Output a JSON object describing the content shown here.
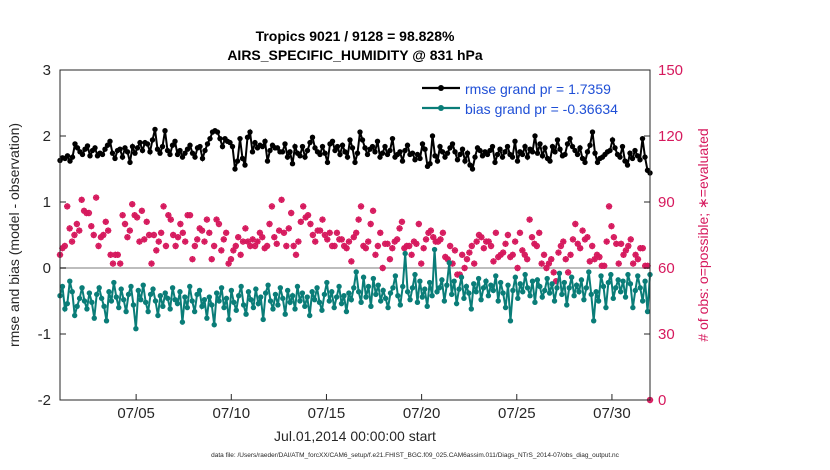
{
  "chart_data": {
    "type": "line",
    "title_line1": "Tropics 9021 / 9128 = 98.828%",
    "title_line2": "AIRS_SPECIFIC_HUMIDITY @ 831 hPa",
    "ylabel_left": "rmse and bias (model - observation)",
    "ylabel_right": "# of obs: o=possible; ∗=evaluated",
    "xlabel": "Jul.01,2014 00:00:00 start",
    "footer": "data file: /Users/raeder/DAI/ATM_forcXX/CAM6_setup/f.e21.FHIST_BGC.f09_025.CAM6assim.011/Diags_NTrS_2014-07/obs_diag_output.nc",
    "x_range": [
      1,
      32
    ],
    "ylim_left": [
      -2,
      3
    ],
    "ylim_right": [
      0,
      150
    ],
    "yticks_left": [
      -2,
      -1,
      0,
      1,
      2,
      3
    ],
    "yticks_right": [
      0,
      30,
      60,
      90,
      120,
      150
    ],
    "xticks": [
      {
        "value": 5,
        "label": "07/05"
      },
      {
        "value": 10,
        "label": "07/10"
      },
      {
        "value": 15,
        "label": "07/15"
      },
      {
        "value": 20,
        "label": "07/20"
      },
      {
        "value": 25,
        "label": "07/25"
      },
      {
        "value": 30,
        "label": "07/30"
      }
    ],
    "legend_position": "top-right",
    "colors": {
      "rmse": "#000000",
      "bias": "#0a7d78",
      "obs": "#d6195d",
      "zero": "#bdbdbd",
      "legend_text": "#1f4fd6"
    },
    "series": [
      {
        "name": "rmse grand pr = 1.7359",
        "key": "rmse",
        "axis": "left",
        "values": [
          1.63,
          1.67,
          1.66,
          1.7,
          1.62,
          1.68,
          1.88,
          1.82,
          1.76,
          1.72,
          1.8,
          1.85,
          1.7,
          1.78,
          1.82,
          1.7,
          1.74,
          1.72,
          1.8,
          1.86,
          1.92,
          1.74,
          1.66,
          1.78,
          1.8,
          1.68,
          1.82,
          1.76,
          1.6,
          1.84,
          1.74,
          1.82,
          1.9,
          1.78,
          1.9,
          1.88,
          1.76,
          1.94,
          2.1,
          1.8,
          1.74,
          1.84,
          2.08,
          1.78,
          1.72,
          1.86,
          1.92,
          1.72,
          1.78,
          1.68,
          1.74,
          1.8,
          1.86,
          1.74,
          1.68,
          1.82,
          1.84,
          1.66,
          1.78,
          1.88,
          1.96,
          2.06,
          2.08,
          2.06,
          1.96,
          1.84,
          1.96,
          1.92,
          1.9,
          1.84,
          1.5,
          1.62,
          1.96,
          1.66,
          1.56,
          1.98,
          2.06,
          1.76,
          1.9,
          1.82,
          1.86,
          1.84,
          1.92,
          1.62,
          1.78,
          1.86,
          1.82,
          1.82,
          1.76,
          1.76,
          1.88,
          1.68,
          1.76,
          1.58,
          1.84,
          1.74,
          1.7,
          1.84,
          1.68,
          1.78,
          1.9,
          1.98,
          1.82,
          1.76,
          1.72,
          1.84,
          1.74,
          1.6,
          1.88,
          1.92,
          1.78,
          1.84,
          1.72,
          1.86,
          1.76,
          1.68,
          1.94,
          1.82,
          1.6,
          1.74,
          2.06,
          1.94,
          1.82,
          1.72,
          1.8,
          1.84,
          1.76,
          1.92,
          1.68,
          1.74,
          1.84,
          1.72,
          1.78,
          1.96,
          1.68,
          1.72,
          1.76,
          1.62,
          1.78,
          1.86,
          1.72,
          1.74,
          1.64,
          1.72,
          1.66,
          1.88,
          1.8,
          1.54,
          1.58,
          2.0,
          1.7,
          1.62,
          1.84,
          1.76,
          1.68,
          1.74,
          1.82,
          1.88,
          1.76,
          1.64,
          1.72,
          1.8,
          1.62,
          1.74,
          1.56,
          1.5,
          1.68,
          1.82,
          1.78,
          1.7,
          1.76,
          1.72,
          1.78,
          1.84,
          1.6,
          1.72,
          1.8,
          1.68,
          1.76,
          1.84,
          1.72,
          1.68,
          1.92,
          1.62,
          1.76,
          1.72,
          1.84,
          1.68,
          1.8,
          1.76,
          2.0,
          1.74,
          1.88,
          1.7,
          1.82,
          1.66,
          1.62,
          1.84,
          1.76,
          1.94,
          1.8,
          1.7,
          1.72,
          1.88,
          1.96,
          1.84,
          1.78,
          1.72,
          1.82,
          1.66,
          1.6,
          1.76,
          1.86,
          2.06,
          1.74,
          1.6,
          1.66,
          1.68,
          1.72,
          1.76,
          1.78,
          1.94,
          1.82,
          1.72,
          1.68,
          1.84,
          1.62,
          1.56,
          1.74,
          1.66,
          1.78,
          1.7,
          1.64,
          1.96,
          1.68,
          1.48,
          1.44
        ]
      },
      {
        "name": "bias grand pr = -0.36634",
        "key": "bias",
        "axis": "left",
        "values": [
          -0.42,
          -0.28,
          -0.62,
          -0.54,
          -0.2,
          -0.36,
          -0.72,
          -0.58,
          -0.46,
          -0.3,
          -0.5,
          -0.62,
          -0.38,
          -0.52,
          -0.76,
          -0.4,
          -0.3,
          -0.46,
          -0.58,
          -0.8,
          -0.36,
          -0.5,
          -0.22,
          -0.44,
          -0.6,
          -0.32,
          -0.48,
          -0.66,
          -0.4,
          -0.28,
          -0.56,
          -0.92,
          -0.34,
          -0.48,
          -0.26,
          -0.52,
          -0.66,
          -0.4,
          -0.32,
          -0.5,
          -0.72,
          -0.42,
          -0.58,
          -0.38,
          -0.46,
          -0.62,
          -0.3,
          -0.48,
          -0.54,
          -0.36,
          -0.82,
          -0.44,
          -0.6,
          -0.28,
          -0.5,
          -0.66,
          -0.4,
          -0.34,
          -0.58,
          -0.48,
          -0.76,
          -0.44,
          -0.56,
          -0.86,
          -0.38,
          -0.5,
          -0.3,
          -0.6,
          -0.46,
          -0.78,
          -0.34,
          -0.52,
          -0.64,
          -0.42,
          -0.28,
          -0.56,
          -0.7,
          -0.36,
          -0.48,
          -0.6,
          -0.32,
          -0.54,
          -0.44,
          -0.78,
          -0.38,
          -0.26,
          -0.5,
          -0.62,
          -0.4,
          -0.56,
          -0.3,
          -0.46,
          -0.7,
          -0.34,
          -0.52,
          -0.42,
          -0.62,
          -0.28,
          -0.5,
          -0.38,
          -0.58,
          -0.44,
          -0.72,
          -0.36,
          -0.48,
          -0.3,
          -0.52,
          -0.64,
          -0.4,
          -0.22,
          -0.5,
          -0.36,
          -0.6,
          -0.44,
          -0.28,
          -0.54,
          -0.42,
          -0.66,
          -0.38,
          -0.48,
          -0.3,
          -0.06,
          -0.36,
          -0.52,
          -0.14,
          -0.44,
          -0.28,
          -0.58,
          -0.16,
          -0.4,
          -0.26,
          -0.5,
          -0.34,
          -0.46,
          -0.6,
          -0.38,
          -0.3,
          -0.12,
          -0.42,
          -0.56,
          -0.28,
          0.22,
          -0.36,
          -0.48,
          -0.3,
          -0.1,
          -0.52,
          -0.2,
          -0.44,
          -0.32,
          -0.58,
          -0.22,
          -0.42,
          0.28,
          -0.36,
          -0.3,
          -0.18,
          -0.5,
          -0.26,
          0.08,
          -0.4,
          -0.2,
          -0.54,
          -0.32,
          -0.14,
          -0.46,
          -0.28,
          -0.38,
          -0.62,
          -0.24,
          -0.36,
          -0.16,
          -0.48,
          -0.3,
          -0.2,
          -0.42,
          -0.26,
          -0.34,
          -0.12,
          -0.5,
          -0.22,
          -0.38,
          -0.6,
          -0.26,
          -0.8,
          -0.34,
          -0.14,
          -0.46,
          -0.24,
          -0.36,
          -0.1,
          -0.3,
          -0.42,
          -0.2,
          -0.52,
          -0.18,
          -0.28,
          -0.44,
          -0.34,
          -0.16,
          -0.38,
          -0.24,
          -0.5,
          -0.3,
          -0.08,
          -0.4,
          -0.22,
          -0.56,
          -0.3,
          -0.14,
          -0.42,
          -0.26,
          -0.36,
          -0.18,
          -0.48,
          -0.3,
          -0.06,
          -0.4,
          -0.8,
          -0.36,
          -0.5,
          -0.12,
          -0.28,
          -0.6,
          -0.22,
          -0.1,
          -0.46,
          -0.3,
          -0.18,
          -0.36,
          -0.2,
          -0.44,
          -0.1,
          -0.24,
          -0.6,
          -0.34,
          -0.12,
          -0.3,
          -0.5,
          -0.2,
          -0.66,
          -0.1
        ]
      }
    ],
    "obs_counts": {
      "possible": [
        66,
        69,
        70,
        88,
        78,
        72,
        75,
        80,
        77,
        91,
        86,
        85,
        85,
        79,
        75,
        92,
        70,
        74,
        75,
        81,
        77,
        66,
        62,
        66,
        66,
        62,
        84,
        80,
        74,
        77,
        89,
        84,
        83,
        72,
        86,
        73,
        81,
        75,
        62,
        75,
        68,
        72,
        76,
        88,
        70,
        84,
        82,
        75,
        70,
        74,
        80,
        76,
        72,
        84,
        84,
        64,
        70,
        73,
        78,
        77,
        72,
        82,
        76,
        64,
        70,
        82,
        80,
        68,
        73,
        76,
        62,
        64,
        68,
        70,
        74,
        66,
        72,
        78,
        72,
        70,
        73,
        70,
        72,
        76,
        74,
        69,
        70,
        80,
        88,
        74,
        71,
        77,
        91,
        76,
        70,
        78,
        85,
        70,
        66,
        72,
        81,
        88,
        83,
        84,
        80,
        75,
        72,
        77,
        77,
        82,
        75,
        73,
        76,
        70,
        70,
        76,
        73,
        73,
        70,
        69,
        72,
        63,
        74,
        76,
        82,
        88,
        70,
        69,
        72,
        80,
        86,
        66,
        70,
        76,
        60,
        71,
        71,
        64,
        69,
        72,
        73,
        78,
        81,
        69,
        70,
        70,
        66,
        72,
        71,
        80,
        62,
        69,
        73,
        76,
        77,
        74,
        72,
        72,
        73,
        76,
        65,
        64,
        70,
        62,
        68,
        57,
        57,
        66,
        60,
        64,
        67,
        70,
        62,
        72,
        75,
        74,
        69,
        72,
        72,
        70,
        63,
        76,
        65,
        66,
        67,
        71,
        75,
        65,
        66,
        72,
        60,
        76,
        68,
        66,
        64,
        82,
        74,
        71,
        70,
        76,
        62,
        66,
        60,
        62,
        64,
        58,
        54,
        67,
        70,
        72,
        64,
        58,
        66,
        73,
        80,
        71,
        69,
        77,
        73,
        74,
        63,
        70,
        64,
        66,
        65,
        61,
        61,
        72,
        88,
        79,
        74,
        71,
        62,
        71,
        66,
        68,
        70,
        73,
        62,
        66,
        64,
        69,
        69,
        61,
        61,
        0
      ],
      "evaluated": [
        66,
        69,
        70,
        88,
        78,
        72,
        75,
        80,
        77,
        91,
        86,
        85,
        85,
        79,
        75,
        92,
        70,
        74,
        75,
        81,
        77,
        66,
        62,
        66,
        66,
        62,
        84,
        80,
        74,
        77,
        89,
        84,
        83,
        72,
        86,
        73,
        81,
        75,
        62,
        75,
        68,
        72,
        76,
        88,
        70,
        84,
        82,
        75,
        70,
        74,
        80,
        76,
        72,
        84,
        84,
        64,
        70,
        73,
        78,
        77,
        72,
        82,
        76,
        64,
        70,
        82,
        80,
        68,
        73,
        76,
        62,
        64,
        68,
        70,
        74,
        66,
        72,
        78,
        72,
        70,
        73,
        70,
        72,
        76,
        74,
        69,
        70,
        80,
        88,
        74,
        71,
        77,
        91,
        76,
        70,
        78,
        85,
        70,
        66,
        72,
        81,
        88,
        83,
        84,
        80,
        75,
        72,
        77,
        77,
        82,
        75,
        73,
        76,
        70,
        70,
        76,
        73,
        73,
        70,
        69,
        72,
        63,
        74,
        76,
        82,
        88,
        70,
        69,
        72,
        80,
        86,
        66,
        70,
        76,
        60,
        71,
        71,
        64,
        69,
        72,
        73,
        78,
        81,
        69,
        70,
        70,
        66,
        72,
        71,
        80,
        62,
        69,
        73,
        76,
        77,
        74,
        72,
        72,
        73,
        76,
        65,
        64,
        70,
        62,
        68,
        57,
        57,
        66,
        60,
        64,
        67,
        70,
        62,
        72,
        75,
        74,
        69,
        72,
        72,
        70,
        63,
        76,
        65,
        66,
        67,
        71,
        75,
        65,
        66,
        72,
        60,
        76,
        68,
        66,
        64,
        82,
        74,
        71,
        70,
        76,
        62,
        66,
        60,
        62,
        64,
        58,
        54,
        67,
        70,
        72,
        64,
        58,
        66,
        73,
        80,
        71,
        69,
        77,
        73,
        74,
        63,
        70,
        64,
        66,
        65,
        61,
        61,
        72,
        88,
        79,
        74,
        71,
        62,
        71,
        66,
        68,
        70,
        73,
        62,
        66,
        64,
        69,
        69,
        61,
        61,
        0
      ]
    }
  }
}
